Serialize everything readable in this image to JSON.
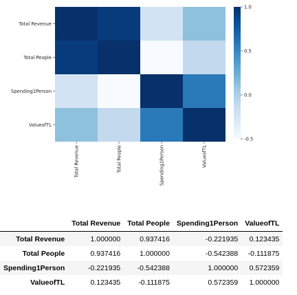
{
  "chart_data": {
    "type": "heatmap",
    "x_labels": [
      "Total Revenue",
      "Total People",
      "Spending1Person",
      "ValueofTL"
    ],
    "y_labels": [
      "Total Revenue",
      "Total People",
      "Spending1Person",
      "ValueofTL"
    ],
    "values": [
      [
        1.0,
        0.937416,
        -0.221935,
        0.123435
      ],
      [
        0.937416,
        1.0,
        -0.542388,
        -0.111875
      ],
      [
        -0.221935,
        -0.542388,
        1.0,
        0.572359
      ],
      [
        0.123435,
        -0.111875,
        0.572359,
        1.0
      ]
    ],
    "colormap": "Blues",
    "vmin": -0.5,
    "vmax": 1.0,
    "colorbar_ticks": [
      "1.0",
      "0.5",
      "0.0",
      "-0.5"
    ],
    "colorbar_tick_values": [
      1.0,
      0.5,
      0.0,
      -0.5
    ],
    "grid": false
  },
  "table": {
    "columns": [
      "",
      "Total Revenue",
      "Total People",
      "Spending1Person",
      "ValueofTL"
    ],
    "rows": [
      {
        "label": "Total Revenue",
        "cells": [
          "1.000000",
          "0.937416",
          "-0.221935",
          "0.123435"
        ]
      },
      {
        "label": "Total People",
        "cells": [
          "0.937416",
          "1.000000",
          "-0.542388",
          "-0.111875"
        ]
      },
      {
        "label": "Spending1Person",
        "cells": [
          "-0.221935",
          "-0.542388",
          "1.000000",
          "0.572359"
        ]
      },
      {
        "label": "ValueofTL",
        "cells": [
          "0.123435",
          "-0.111875",
          "0.572359",
          "1.000000"
        ]
      }
    ]
  }
}
